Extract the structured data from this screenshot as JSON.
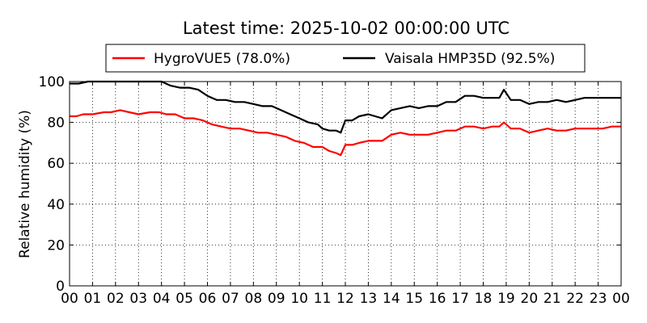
{
  "chart_data": {
    "type": "line",
    "title": "Latest time: 2025-10-02 00:00:00 UTC",
    "xlabel": "",
    "ylabel": "Relative humidity (%)",
    "x_unit": "hour of day (UTC)",
    "xlim": [
      0,
      24
    ],
    "ylim": [
      0,
      100
    ],
    "x_ticks": [
      "00",
      "01",
      "02",
      "03",
      "04",
      "05",
      "06",
      "07",
      "08",
      "09",
      "10",
      "11",
      "12",
      "13",
      "14",
      "15",
      "16",
      "17",
      "18",
      "19",
      "20",
      "21",
      "22",
      "23",
      "00"
    ],
    "y_ticks": [
      0,
      20,
      40,
      60,
      80,
      100
    ],
    "grid": true,
    "legend_position": "top",
    "series": [
      {
        "name": "HygroVUE5 (78.0%)",
        "color": "#ff0000",
        "x": [
          0,
          0.3,
          0.6,
          1,
          1.5,
          1.8,
          2.2,
          2.6,
          3,
          3.5,
          3.9,
          4.2,
          4.6,
          5,
          5.4,
          5.8,
          6.2,
          6.6,
          7,
          7.4,
          7.8,
          8.2,
          8.6,
          9,
          9.4,
          9.8,
          10.2,
          10.6,
          11,
          11.3,
          11.6,
          11.8,
          12,
          12.3,
          12.6,
          13,
          13.3,
          13.6,
          14,
          14.4,
          14.8,
          15.2,
          15.6,
          16,
          16.4,
          16.8,
          17.2,
          17.6,
          18,
          18.4,
          18.7,
          18.9,
          19.2,
          19.6,
          20,
          20.4,
          20.8,
          21.2,
          21.6,
          22,
          22.4,
          22.8,
          23.2,
          23.6,
          24
        ],
        "y": [
          83,
          83,
          84,
          84,
          85,
          85,
          86,
          85,
          84,
          85,
          85,
          84,
          84,
          82,
          82,
          81,
          79,
          78,
          77,
          77,
          76,
          75,
          75,
          74,
          73,
          71,
          70,
          68,
          68,
          66,
          65,
          64,
          69,
          69,
          70,
          71,
          71,
          71,
          74,
          75,
          74,
          74,
          74,
          75,
          76,
          76,
          78,
          78,
          77,
          78,
          78,
          80,
          77,
          77,
          75,
          76,
          77,
          76,
          76,
          77,
          77,
          77,
          77,
          78,
          78
        ]
      },
      {
        "name": "Vaisala HMP35D (92.5%)",
        "color": "#000000",
        "x": [
          0,
          0.4,
          0.8,
          1.2,
          1.6,
          2,
          2.4,
          2.8,
          3.2,
          3.6,
          4,
          4.4,
          4.8,
          5.2,
          5.6,
          6,
          6.4,
          6.8,
          7.2,
          7.6,
          8,
          8.4,
          8.8,
          9.2,
          9.6,
          10,
          10.4,
          10.8,
          11,
          11.3,
          11.6,
          11.8,
          12,
          12.3,
          12.6,
          13,
          13.3,
          13.6,
          14,
          14.4,
          14.8,
          15.2,
          15.6,
          16,
          16.4,
          16.8,
          17.2,
          17.6,
          18,
          18.4,
          18.7,
          18.9,
          19.2,
          19.6,
          20,
          20.4,
          20.8,
          21.2,
          21.6,
          22,
          22.4,
          22.8,
          23.2,
          23.6,
          24
        ],
        "y": [
          99,
          99,
          100,
          100,
          100,
          100,
          100,
          100,
          100,
          100,
          100,
          98,
          97,
          97,
          96,
          93,
          91,
          91,
          90,
          90,
          89,
          88,
          88,
          86,
          84,
          82,
          80,
          79,
          77,
          76,
          76,
          75,
          81,
          81,
          83,
          84,
          83,
          82,
          86,
          87,
          88,
          87,
          88,
          88,
          90,
          90,
          93,
          93,
          92,
          92,
          92,
          96,
          91,
          91,
          89,
          90,
          90,
          91,
          90,
          91,
          92,
          92,
          92,
          92,
          92
        ]
      }
    ]
  }
}
